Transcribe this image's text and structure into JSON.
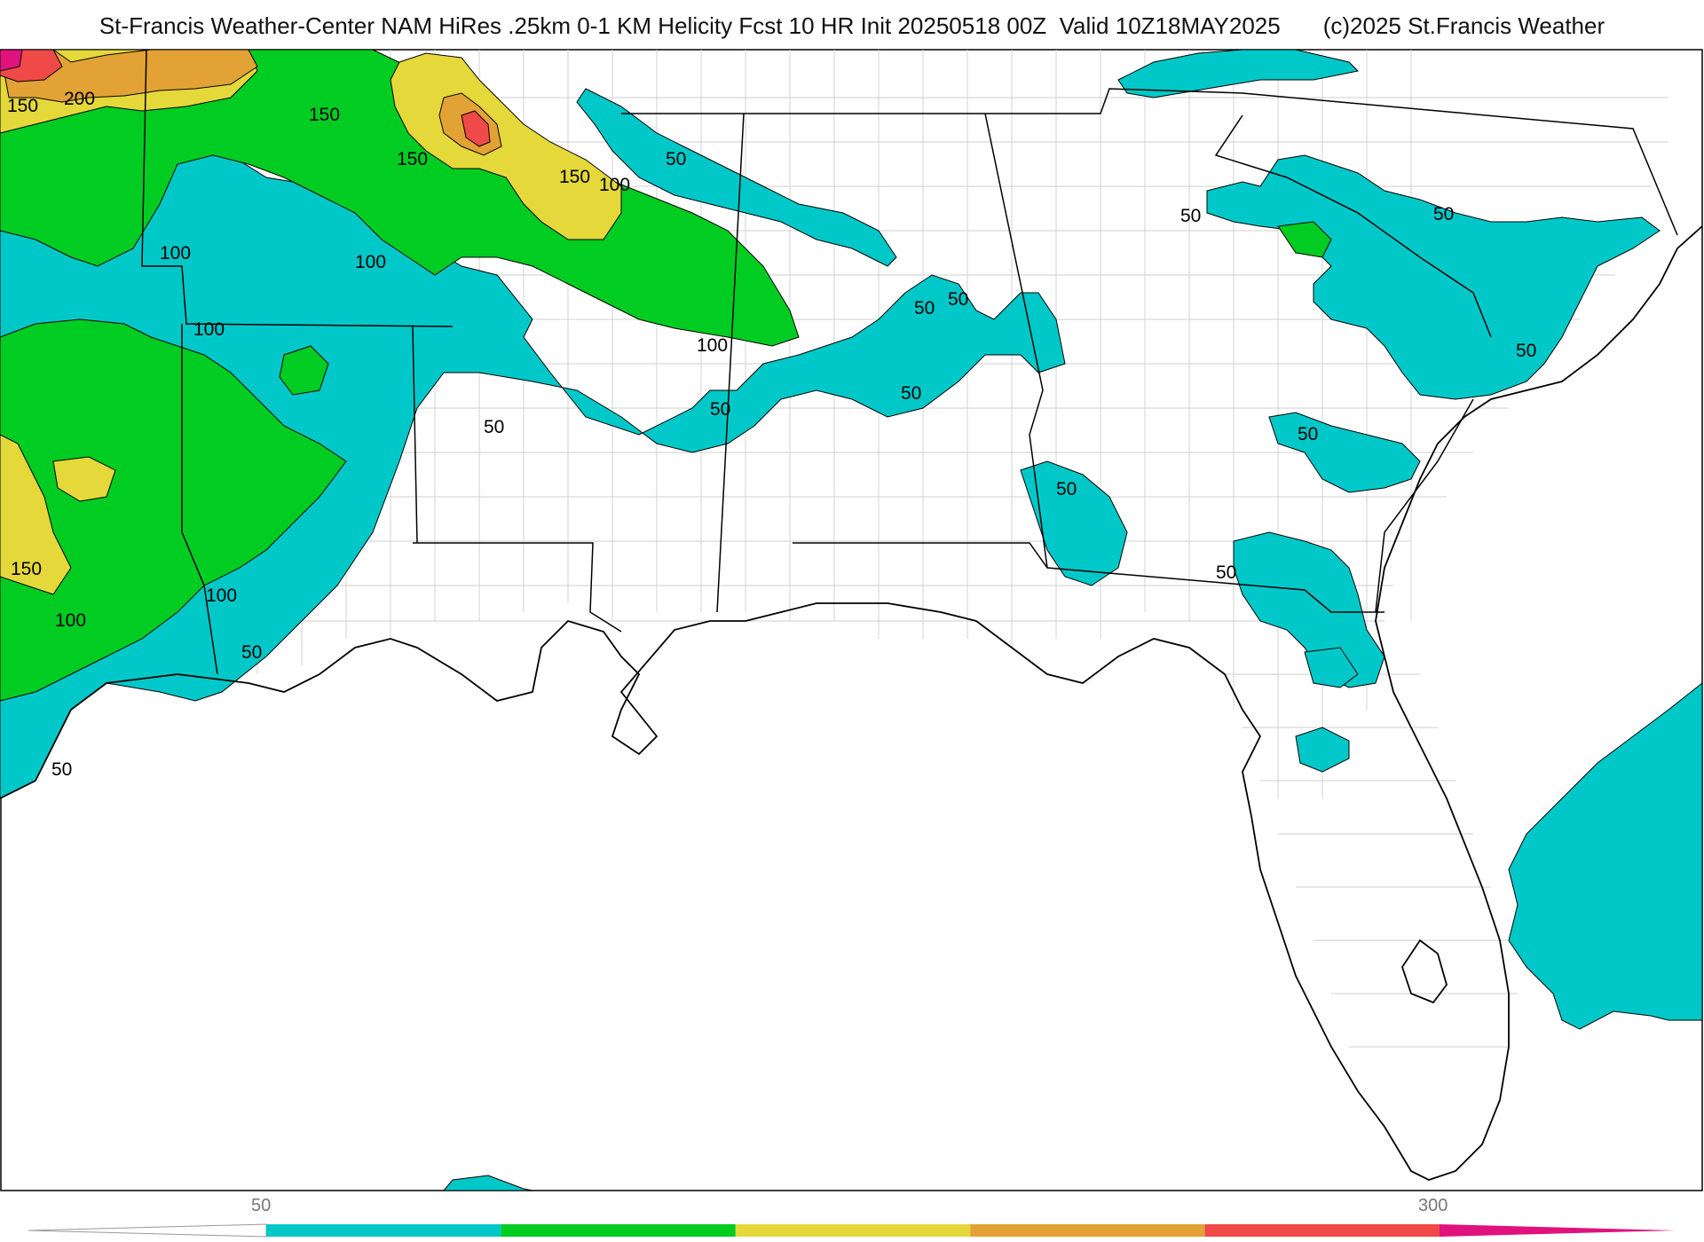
{
  "header": {
    "title": "St-Francis Weather-Center NAM HiRes .25km 0-1 KM Helicity Fcst 10 HR Init 20250518 00Z  Valid 10Z18MAY2025",
    "credit": "(c)2025 St.Francis Weather"
  },
  "colors": {
    "c50": "#00c8c8",
    "c100": "#00cc22",
    "c150": "#e4d83a",
    "c200": "#e2a235",
    "c250": "#ef4a48",
    "c300": "#e0127e",
    "land_border": "#000000",
    "county_border": "#c8c8c8"
  },
  "contour_labels": [
    {
      "text": "150"
    },
    {
      "text": "200"
    },
    {
      "text": "150"
    },
    {
      "text": "150"
    },
    {
      "text": "150"
    },
    {
      "text": "100"
    },
    {
      "text": "50"
    },
    {
      "text": "100"
    },
    {
      "text": "100"
    },
    {
      "text": "100"
    },
    {
      "text": "100"
    },
    {
      "text": "50"
    },
    {
      "text": "50"
    },
    {
      "text": "50"
    },
    {
      "text": "50"
    },
    {
      "text": "50"
    },
    {
      "text": "50"
    },
    {
      "text": "50"
    },
    {
      "text": "50"
    },
    {
      "text": "50"
    },
    {
      "text": "50"
    },
    {
      "text": "150"
    },
    {
      "text": "100"
    },
    {
      "text": "100"
    },
    {
      "text": "50"
    },
    {
      "text": "50"
    },
    {
      "text": "50"
    }
  ],
  "colorbar": {
    "tick_labels": [
      "50",
      "300"
    ],
    "bins": [
      {
        "from": 50,
        "to": 100,
        "color": "#00c8c8"
      },
      {
        "from": 100,
        "to": 150,
        "color": "#00cc22"
      },
      {
        "from": 150,
        "to": 200,
        "color": "#e4d83a"
      },
      {
        "from": 200,
        "to": 250,
        "color": "#e2a235"
      },
      {
        "from": 250,
        "to": 300,
        "color": "#ef4a48"
      }
    ]
  }
}
